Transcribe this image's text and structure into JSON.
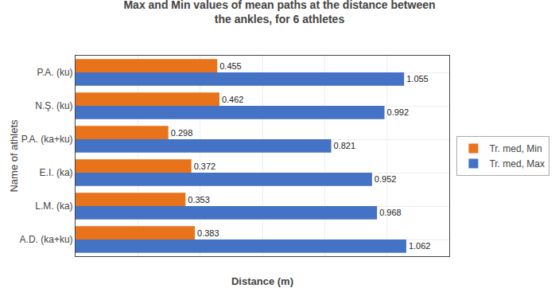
{
  "chart_data": {
    "type": "bar",
    "orientation": "horizontal",
    "title": "Max and Min values of mean paths at the distance between\nthe ankles, for 6 athletes",
    "xlabel": "Distance (m)",
    "ylabel": "Name of athlets",
    "categories": [
      "P.A. (ku)",
      "N.Ş. (ku)",
      "P.A. (ka+ku)",
      "E.I. (ka)",
      "L.M. (ka)",
      "A.D. (ka+ku)"
    ],
    "series": [
      {
        "name": "Tr. med, Min",
        "color": "#E8731A",
        "values": [
          0.455,
          0.462,
          0.298,
          0.372,
          0.353,
          0.383
        ]
      },
      {
        "name": "Tr. med, Max",
        "color": "#4472C4",
        "values": [
          1.055,
          0.992,
          0.821,
          0.952,
          0.968,
          1.062
        ]
      }
    ],
    "xlim": [
      0,
      1.2
    ],
    "xticks": [
      0,
      0.2,
      0.4,
      0.6,
      0.8,
      1,
      1.2
    ],
    "grid": true,
    "legend": "right",
    "data_labels": true,
    "tick_labels": "y"
  }
}
